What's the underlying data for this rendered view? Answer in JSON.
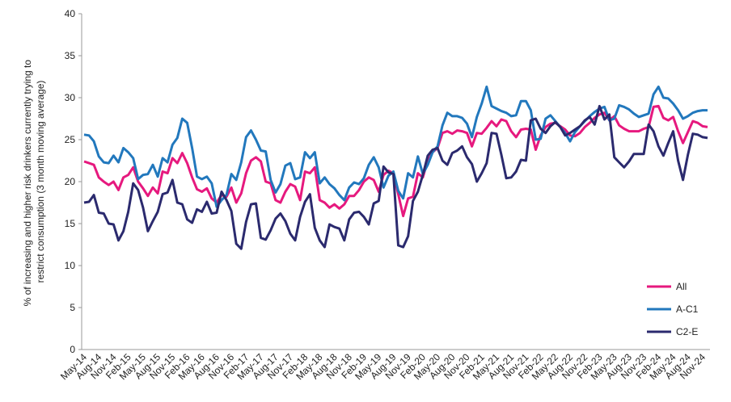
{
  "chart_data": {
    "type": "line",
    "y_label": [
      "% of increasing and higher risk drinkers currently trying to",
      "restrict consumption (3 month moving average)"
    ],
    "categories": [
      "May-14",
      null,
      null,
      "Aug-14",
      null,
      null,
      "Nov-14",
      null,
      null,
      "Feb-15",
      null,
      null,
      "May-15",
      null,
      null,
      "Aug-15",
      null,
      null,
      "Nov-15",
      null,
      null,
      "Feb-16",
      null,
      null,
      "May-16",
      null,
      null,
      "Aug-16",
      null,
      null,
      "Nov-16",
      null,
      null,
      "Feb-17",
      null,
      null,
      "May-17",
      null,
      null,
      "Aug-17",
      null,
      null,
      "Nov-17",
      null,
      null,
      "Feb-18",
      null,
      null,
      "May-18",
      null,
      null,
      "Aug-18",
      null,
      null,
      "Nov-18",
      null,
      null,
      "Feb-19",
      null,
      null,
      "May-19",
      null,
      null,
      "Aug-19",
      null,
      null,
      "Nov-19",
      null,
      null,
      "Feb-20",
      null,
      null,
      "May-20",
      null,
      null,
      "Aug-20",
      null,
      null,
      "Nov-20",
      null,
      null,
      "Feb-21",
      null,
      null,
      "May-21",
      null,
      null,
      "Aug-21",
      null,
      null,
      "Nov-21",
      null,
      null,
      "Feb-22",
      null,
      null,
      "May-22",
      null,
      null,
      "Aug-22",
      null,
      null,
      "Nov-22",
      null,
      null,
      "Feb-23",
      null,
      null,
      "May-23",
      null,
      null,
      "Aug-23",
      null,
      null,
      "Nov-23",
      null,
      null,
      "Feb-24",
      null,
      null,
      "May-24",
      null,
      null,
      "Aug-24",
      null,
      null,
      "Nov-24",
      null
    ],
    "series": [
      {
        "name": "All",
        "color": "#e6197e",
        "values": [
          22.4,
          22.2,
          22,
          20.5,
          20,
          19.6,
          20,
          19,
          20.5,
          20.8,
          21.7,
          20,
          19.2,
          18.3,
          19.3,
          18.6,
          21.2,
          21,
          22.8,
          22.2,
          23.4,
          22.2,
          20.5,
          19.1,
          18.8,
          19.2,
          18,
          17.5,
          18.4,
          18.2,
          19.3,
          17.5,
          18.6,
          21,
          22.5,
          22.9,
          22.4,
          20,
          19.8,
          17.8,
          17.5,
          18.8,
          19.7,
          19.4,
          17.8,
          21.2,
          21,
          21.7,
          17.8,
          17.5,
          16.9,
          17.3,
          16.8,
          17.3,
          18.3,
          18.3,
          19,
          20,
          20.5,
          20.2,
          18.8,
          20.8,
          21.3,
          21,
          18.5,
          15.9,
          18,
          18.2,
          21,
          20.5,
          22.5,
          23.5,
          24,
          25.8,
          26,
          25.7,
          26.1,
          26,
          25.8,
          24.2,
          25.8,
          25.7,
          26.4,
          27.2,
          26.6,
          27.4,
          27.2,
          26,
          25.3,
          26.2,
          26.3,
          26.2,
          23.8,
          25.5,
          26.5,
          26.9,
          27,
          26.6,
          26.2,
          25.5,
          25.4,
          25.8,
          26.5,
          27,
          27.6,
          28,
          28.2,
          27.3,
          27.8,
          26.7,
          26.3,
          26,
          26,
          26,
          26.3,
          26.5,
          28.9,
          29,
          27.6,
          27.3,
          27.7,
          26,
          24.6,
          25.9,
          27.2,
          27,
          26.6,
          26.5
        ]
      },
      {
        "name": "A-C1",
        "color": "#2278bd",
        "values": [
          25.6,
          25.5,
          24.8,
          23,
          22.3,
          22.2,
          23.1,
          22.3,
          24,
          23.5,
          22.8,
          20.3,
          20.8,
          20.9,
          22,
          20.6,
          22.8,
          22.3,
          24.4,
          25.2,
          27.5,
          27,
          24,
          20.6,
          20.3,
          20.6,
          19.8,
          17,
          17.8,
          18.4,
          20.9,
          20.2,
          22.3,
          25.3,
          26.1,
          25,
          23.7,
          23.6,
          20.2,
          18.7,
          19.7,
          21.9,
          22.2,
          20.3,
          20.5,
          23.5,
          22.8,
          23.5,
          19.8,
          20.5,
          19.7,
          19.2,
          18.4,
          17.8,
          19.3,
          19.9,
          19.7,
          20.4,
          22,
          22.9,
          21.7,
          19.3,
          20.7,
          21.2,
          18.9,
          18,
          21,
          20.5,
          23,
          20.9,
          22,
          23.5,
          24.2,
          26.7,
          28.2,
          27.8,
          27.8,
          27.6,
          26.9,
          25.3,
          27.7,
          29.3,
          31.3,
          29,
          28.7,
          28.4,
          28.2,
          27.8,
          27.9,
          29.6,
          29.6,
          28.5,
          25,
          25.1,
          27.5,
          27.9,
          27.2,
          26.5,
          25.8,
          24.8,
          25.9,
          26.6,
          27.2,
          27.8,
          28.3,
          28.7,
          28.9,
          27.3,
          27.5,
          29.1,
          28.9,
          28.6,
          28.1,
          27.7,
          27.9,
          28.1,
          30.4,
          31.3,
          30,
          29.9,
          29.3,
          28.5,
          27.5,
          27.8,
          28.2,
          28.4,
          28.5,
          28.5
        ]
      },
      {
        "name": "C2-E",
        "color": "#2b2a6e",
        "values": [
          17.5,
          17.6,
          18.4,
          16.3,
          16.2,
          15,
          14.9,
          13,
          14.1,
          16.4,
          19.8,
          19,
          16.9,
          14.1,
          15.3,
          16.4,
          18.5,
          18.7,
          20.2,
          17.5,
          17.3,
          15.5,
          15.1,
          16.7,
          16.4,
          17.6,
          16.2,
          16.3,
          18.8,
          17.8,
          16.5,
          12.6,
          12,
          15.2,
          17.3,
          17.4,
          13.3,
          13.1,
          14.2,
          15.6,
          16.2,
          15.3,
          13.8,
          13,
          15.8,
          17.6,
          18.5,
          14.5,
          13,
          12.2,
          14.9,
          14.6,
          14.4,
          13,
          15.5,
          16.3,
          16.4,
          15.8,
          14.9,
          17.4,
          17.7,
          21.8,
          21.1,
          20.9,
          12.4,
          12.2,
          13.5,
          17.7,
          18.8,
          20.8,
          23.1,
          23.8,
          24,
          22.5,
          22,
          23.4,
          23.7,
          24.2,
          22.9,
          22.1,
          20,
          21,
          22.2,
          25.8,
          25.7,
          23.2,
          20.4,
          20.5,
          21.2,
          22.6,
          22.5,
          27.3,
          27.5,
          26.3,
          25.8,
          26.6,
          27.1,
          26.5,
          25.5,
          25.8,
          26.2,
          26.6,
          27.3,
          27.7,
          26.8,
          29,
          27.4,
          28,
          22.9,
          22.3,
          21.7,
          22.4,
          23.3,
          23.3,
          23.3,
          26.8,
          26,
          24.2,
          23.1,
          24.6,
          26,
          22.5,
          20.2,
          23.2,
          25.7,
          25.6,
          25.3,
          25.2
        ]
      }
    ],
    "ylim": [
      0,
      40
    ],
    "yticks": [
      0,
      5,
      10,
      15,
      20,
      25,
      30,
      35,
      40
    ],
    "grid": false,
    "legend": "bottom-right"
  }
}
